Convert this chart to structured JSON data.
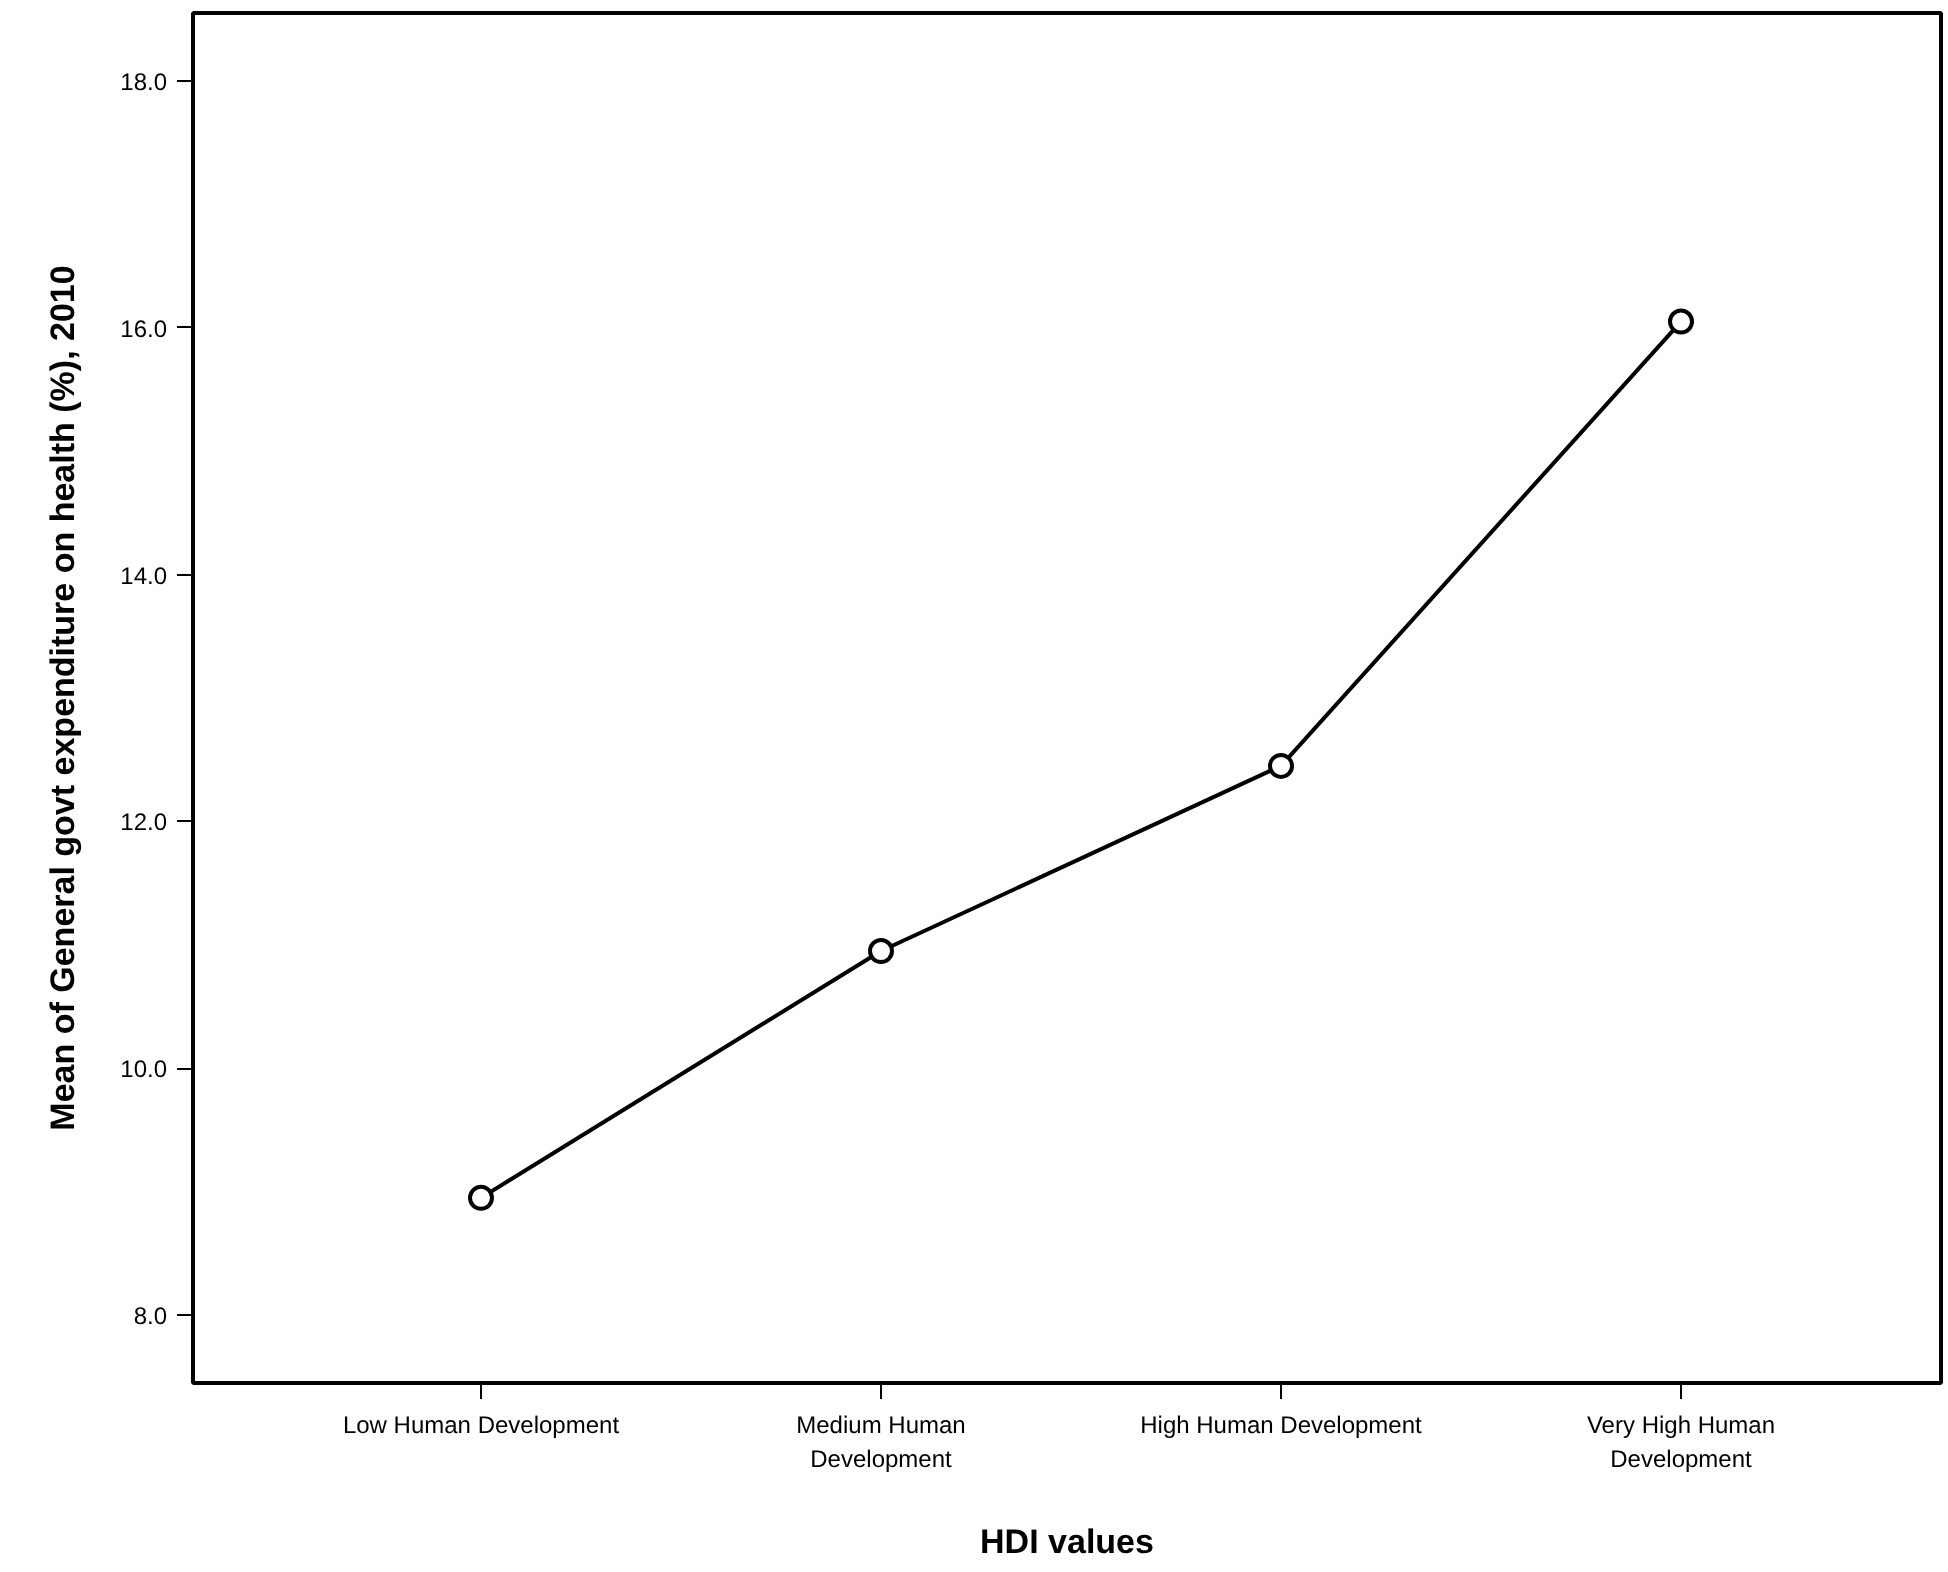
{
  "chart_data": {
    "type": "line",
    "xlabel": "HDI values",
    "ylabel": "Mean of General govt expenditure on health (%), 2010",
    "categories": [
      "Low Human Development",
      "Medium Human Development",
      "High Human Development",
      "Very High Human Development"
    ],
    "series": [
      {
        "color": "#000000",
        "values": [
          8.95,
          10.95,
          12.45,
          16.05
        ]
      }
    ],
    "ylim": [
      7.45,
      18.55
    ],
    "yticks": [
      {
        "value": 8,
        "label": "8.0"
      },
      {
        "value": 10,
        "label": "10.0"
      },
      {
        "value": 12,
        "label": "12.0"
      },
      {
        "value": 14,
        "label": "14.0"
      },
      {
        "value": 16,
        "label": "16.0"
      },
      {
        "value": 18,
        "label": "18.0"
      }
    ],
    "grid": false,
    "marker": "circle",
    "line_style": "solid"
  }
}
